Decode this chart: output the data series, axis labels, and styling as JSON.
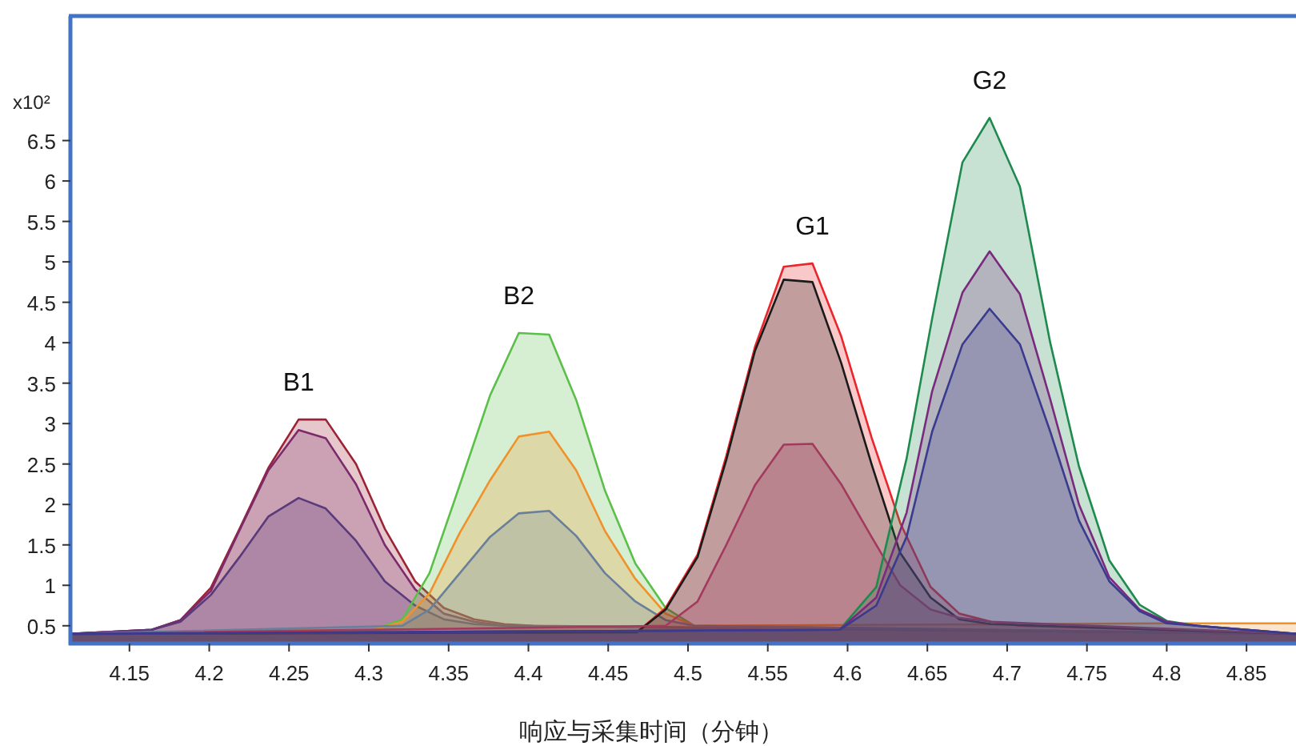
{
  "chart_data": {
    "type": "area",
    "xlabel": "响应与采集时间（分钟）",
    "ylabel": "x10²",
    "xlim": [
      4.113,
      4.881
    ],
    "ylim": [
      0.28,
      8.04
    ],
    "xticks": [
      4.15,
      4.2,
      4.25,
      4.3,
      4.35,
      4.4,
      4.45,
      4.5,
      4.55,
      4.6,
      4.65,
      4.7,
      4.75,
      4.8,
      4.85
    ],
    "yticks": [
      0.5,
      1,
      1.5,
      2,
      2.5,
      3,
      3.5,
      4,
      4.5,
      5,
      5.5,
      6,
      6.5
    ],
    "grid": false,
    "series": [
      {
        "color": "#9b2335",
        "x": [
          4.113,
          4.164,
          4.182,
          4.201,
          4.219,
          4.237,
          4.256,
          4.273,
          4.292,
          4.31,
          4.329,
          4.347,
          4.366,
          4.385,
          4.403,
          4.881
        ],
        "values": [
          0.4,
          0.45,
          0.57,
          0.97,
          1.7,
          2.45,
          3.05,
          3.05,
          2.5,
          1.7,
          1.05,
          0.72,
          0.58,
          0.52,
          0.5,
          0.4
        ]
      },
      {
        "color": "#7b2a6b",
        "x": [
          4.113,
          4.164,
          4.182,
          4.201,
          4.219,
          4.237,
          4.256,
          4.273,
          4.292,
          4.31,
          4.329,
          4.347,
          4.366,
          4.385,
          4.881
        ],
        "values": [
          0.4,
          0.45,
          0.57,
          0.93,
          1.68,
          2.42,
          2.92,
          2.82,
          2.25,
          1.5,
          0.95,
          0.65,
          0.55,
          0.5,
          0.4
        ]
      },
      {
        "color": "#5a3a7a",
        "x": [
          4.113,
          4.164,
          4.182,
          4.201,
          4.219,
          4.237,
          4.256,
          4.273,
          4.292,
          4.31,
          4.329,
          4.347,
          4.366,
          4.385,
          4.881
        ],
        "values": [
          0.4,
          0.45,
          0.55,
          0.88,
          1.35,
          1.85,
          2.08,
          1.95,
          1.55,
          1.05,
          0.75,
          0.58,
          0.52,
          0.5,
          0.4
        ]
      },
      {
        "color": "#5cbf4a",
        "x": [
          4.113,
          4.303,
          4.321,
          4.338,
          4.357,
          4.376,
          4.394,
          4.413,
          4.43,
          4.448,
          4.467,
          4.486,
          4.504,
          4.881
        ],
        "values": [
          0.4,
          0.45,
          0.58,
          1.15,
          2.24,
          3.35,
          4.12,
          4.1,
          3.29,
          2.17,
          1.27,
          0.72,
          0.5,
          0.4
        ]
      },
      {
        "color": "#f0922b",
        "x": [
          4.113,
          4.303,
          4.321,
          4.338,
          4.357,
          4.376,
          4.394,
          4.413,
          4.43,
          4.448,
          4.467,
          4.486,
          4.504,
          4.8,
          4.881
        ],
        "values": [
          0.4,
          0.45,
          0.55,
          0.9,
          1.65,
          2.3,
          2.84,
          2.9,
          2.42,
          1.67,
          1.08,
          0.65,
          0.5,
          0.53,
          0.53
        ]
      },
      {
        "color": "#6a7f9a",
        "x": [
          4.113,
          4.321,
          4.338,
          4.357,
          4.376,
          4.394,
          4.413,
          4.43,
          4.448,
          4.467,
          4.486,
          4.504,
          4.881
        ],
        "values": [
          0.4,
          0.5,
          0.7,
          1.15,
          1.6,
          1.89,
          1.92,
          1.61,
          1.15,
          0.8,
          0.57,
          0.5,
          0.4
        ]
      },
      {
        "color": "#e8262b",
        "x": [
          4.113,
          4.468,
          4.486,
          4.506,
          4.524,
          4.542,
          4.56,
          4.578,
          4.596,
          4.615,
          4.633,
          4.652,
          4.67,
          4.69,
          4.708,
          4.881
        ],
        "values": [
          0.4,
          0.42,
          0.72,
          1.38,
          2.6,
          3.95,
          4.94,
          4.98,
          4.08,
          2.83,
          1.77,
          0.98,
          0.65,
          0.55,
          0.5,
          0.4
        ]
      },
      {
        "color": "#1a1a1a",
        "x": [
          4.113,
          4.468,
          4.486,
          4.506,
          4.524,
          4.542,
          4.56,
          4.578,
          4.596,
          4.615,
          4.633,
          4.652,
          4.67,
          4.69,
          4.881
        ],
        "values": [
          0.4,
          0.42,
          0.7,
          1.35,
          2.55,
          3.9,
          4.78,
          4.75,
          3.75,
          2.5,
          1.4,
          0.85,
          0.58,
          0.52,
          0.4
        ]
      },
      {
        "color": "#a33a5e",
        "x": [
          4.113,
          4.486,
          4.506,
          4.524,
          4.542,
          4.56,
          4.578,
          4.596,
          4.615,
          4.633,
          4.652,
          4.67,
          4.69,
          4.881
        ],
        "values": [
          0.4,
          0.5,
          0.8,
          1.5,
          2.24,
          2.74,
          2.75,
          2.25,
          1.6,
          1.0,
          0.7,
          0.6,
          0.55,
          0.4
        ]
      },
      {
        "color": "#1e8a4e",
        "x": [
          4.113,
          4.595,
          4.618,
          4.637,
          4.653,
          4.672,
          4.689,
          4.708,
          4.727,
          4.745,
          4.764,
          4.783,
          4.8,
          4.819,
          4.881
        ],
        "values": [
          0.4,
          0.45,
          0.98,
          2.57,
          4.3,
          6.23,
          6.78,
          5.93,
          4.0,
          2.47,
          1.31,
          0.76,
          0.56,
          0.5,
          0.4
        ]
      },
      {
        "color": "#7a2a7e",
        "x": [
          4.113,
          4.595,
          4.618,
          4.637,
          4.653,
          4.672,
          4.689,
          4.708,
          4.727,
          4.745,
          4.764,
          4.783,
          4.8,
          4.819,
          4.881
        ],
        "values": [
          0.4,
          0.45,
          0.85,
          1.9,
          3.4,
          4.62,
          5.13,
          4.6,
          3.3,
          2.0,
          1.1,
          0.7,
          0.55,
          0.5,
          0.4
        ]
      },
      {
        "color": "#3a3a8f",
        "x": [
          4.113,
          4.595,
          4.618,
          4.637,
          4.653,
          4.672,
          4.689,
          4.708,
          4.727,
          4.745,
          4.764,
          4.783,
          4.8,
          4.819,
          4.881
        ],
        "values": [
          0.4,
          0.45,
          0.75,
          1.6,
          2.9,
          3.98,
          4.42,
          3.98,
          2.9,
          1.8,
          1.05,
          0.68,
          0.53,
          0.5,
          0.4
        ]
      }
    ],
    "annotations": [
      {
        "text": "B1",
        "x": 4.256,
        "y": 3.05
      },
      {
        "text": "B2",
        "x": 4.394,
        "y": 4.12
      },
      {
        "text": "G1",
        "x": 4.578,
        "y": 4.98
      },
      {
        "text": "G2",
        "x": 4.689,
        "y": 6.78
      }
    ]
  }
}
